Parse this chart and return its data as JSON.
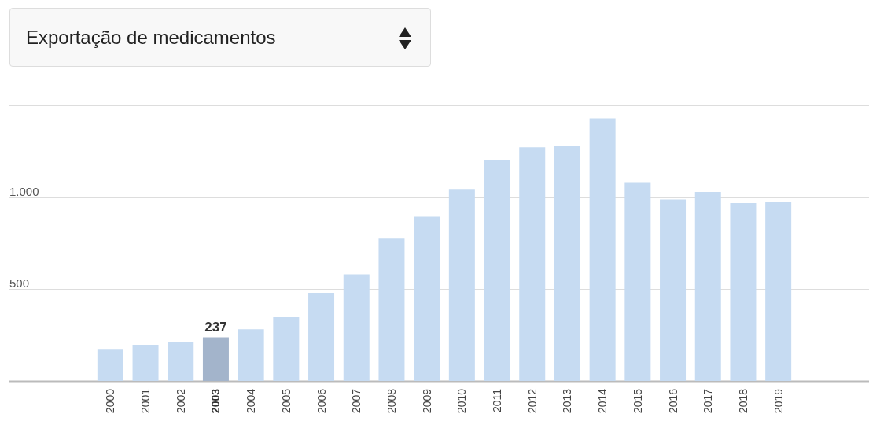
{
  "chart_data": {
    "type": "bar",
    "subtitle": "Exportação de medicamentos",
    "categories": [
      "2000",
      "2001",
      "2002",
      "2003",
      "2004",
      "2005",
      "2006",
      "2007",
      "2008",
      "2009",
      "2010",
      "2011",
      "2012",
      "2013",
      "2014",
      "2015",
      "2016",
      "2017",
      "2018",
      "2019"
    ],
    "values": [
      174,
      197,
      212,
      237,
      281,
      350,
      479,
      579,
      777,
      895,
      1042,
      1201,
      1272,
      1278,
      1430,
      1079,
      989,
      1027,
      967,
      974
    ],
    "colors": [
      "#c6dbf2",
      "#c6dbf2",
      "#c6dbf2",
      "#a3b4cb",
      "#c6dbf2",
      "#c6dbf2",
      "#c6dbf2",
      "#c6dbf2",
      "#c6dbf2",
      "#c6dbf2",
      "#c6dbf2",
      "#c6dbf2",
      "#c6dbf2",
      "#c6dbf2",
      "#c6dbf2",
      "#c6dbf2",
      "#c6dbf2",
      "#c6dbf2",
      "#c6dbf2",
      "#c6dbf2"
    ],
    "value_labels": [
      null,
      null,
      null,
      "237",
      null,
      null,
      null,
      null,
      null,
      null,
      null,
      null,
      null,
      null,
      null,
      null,
      null,
      null,
      null,
      null
    ],
    "ylim": [
      0,
      1500
    ],
    "yticks": [
      {
        "value": 0,
        "label": null
      },
      500,
      {
        "value": 1000,
        "label": "1.000"
      },
      {
        "value": 1500,
        "label": null
      }
    ],
    "grid": "y"
  }
}
